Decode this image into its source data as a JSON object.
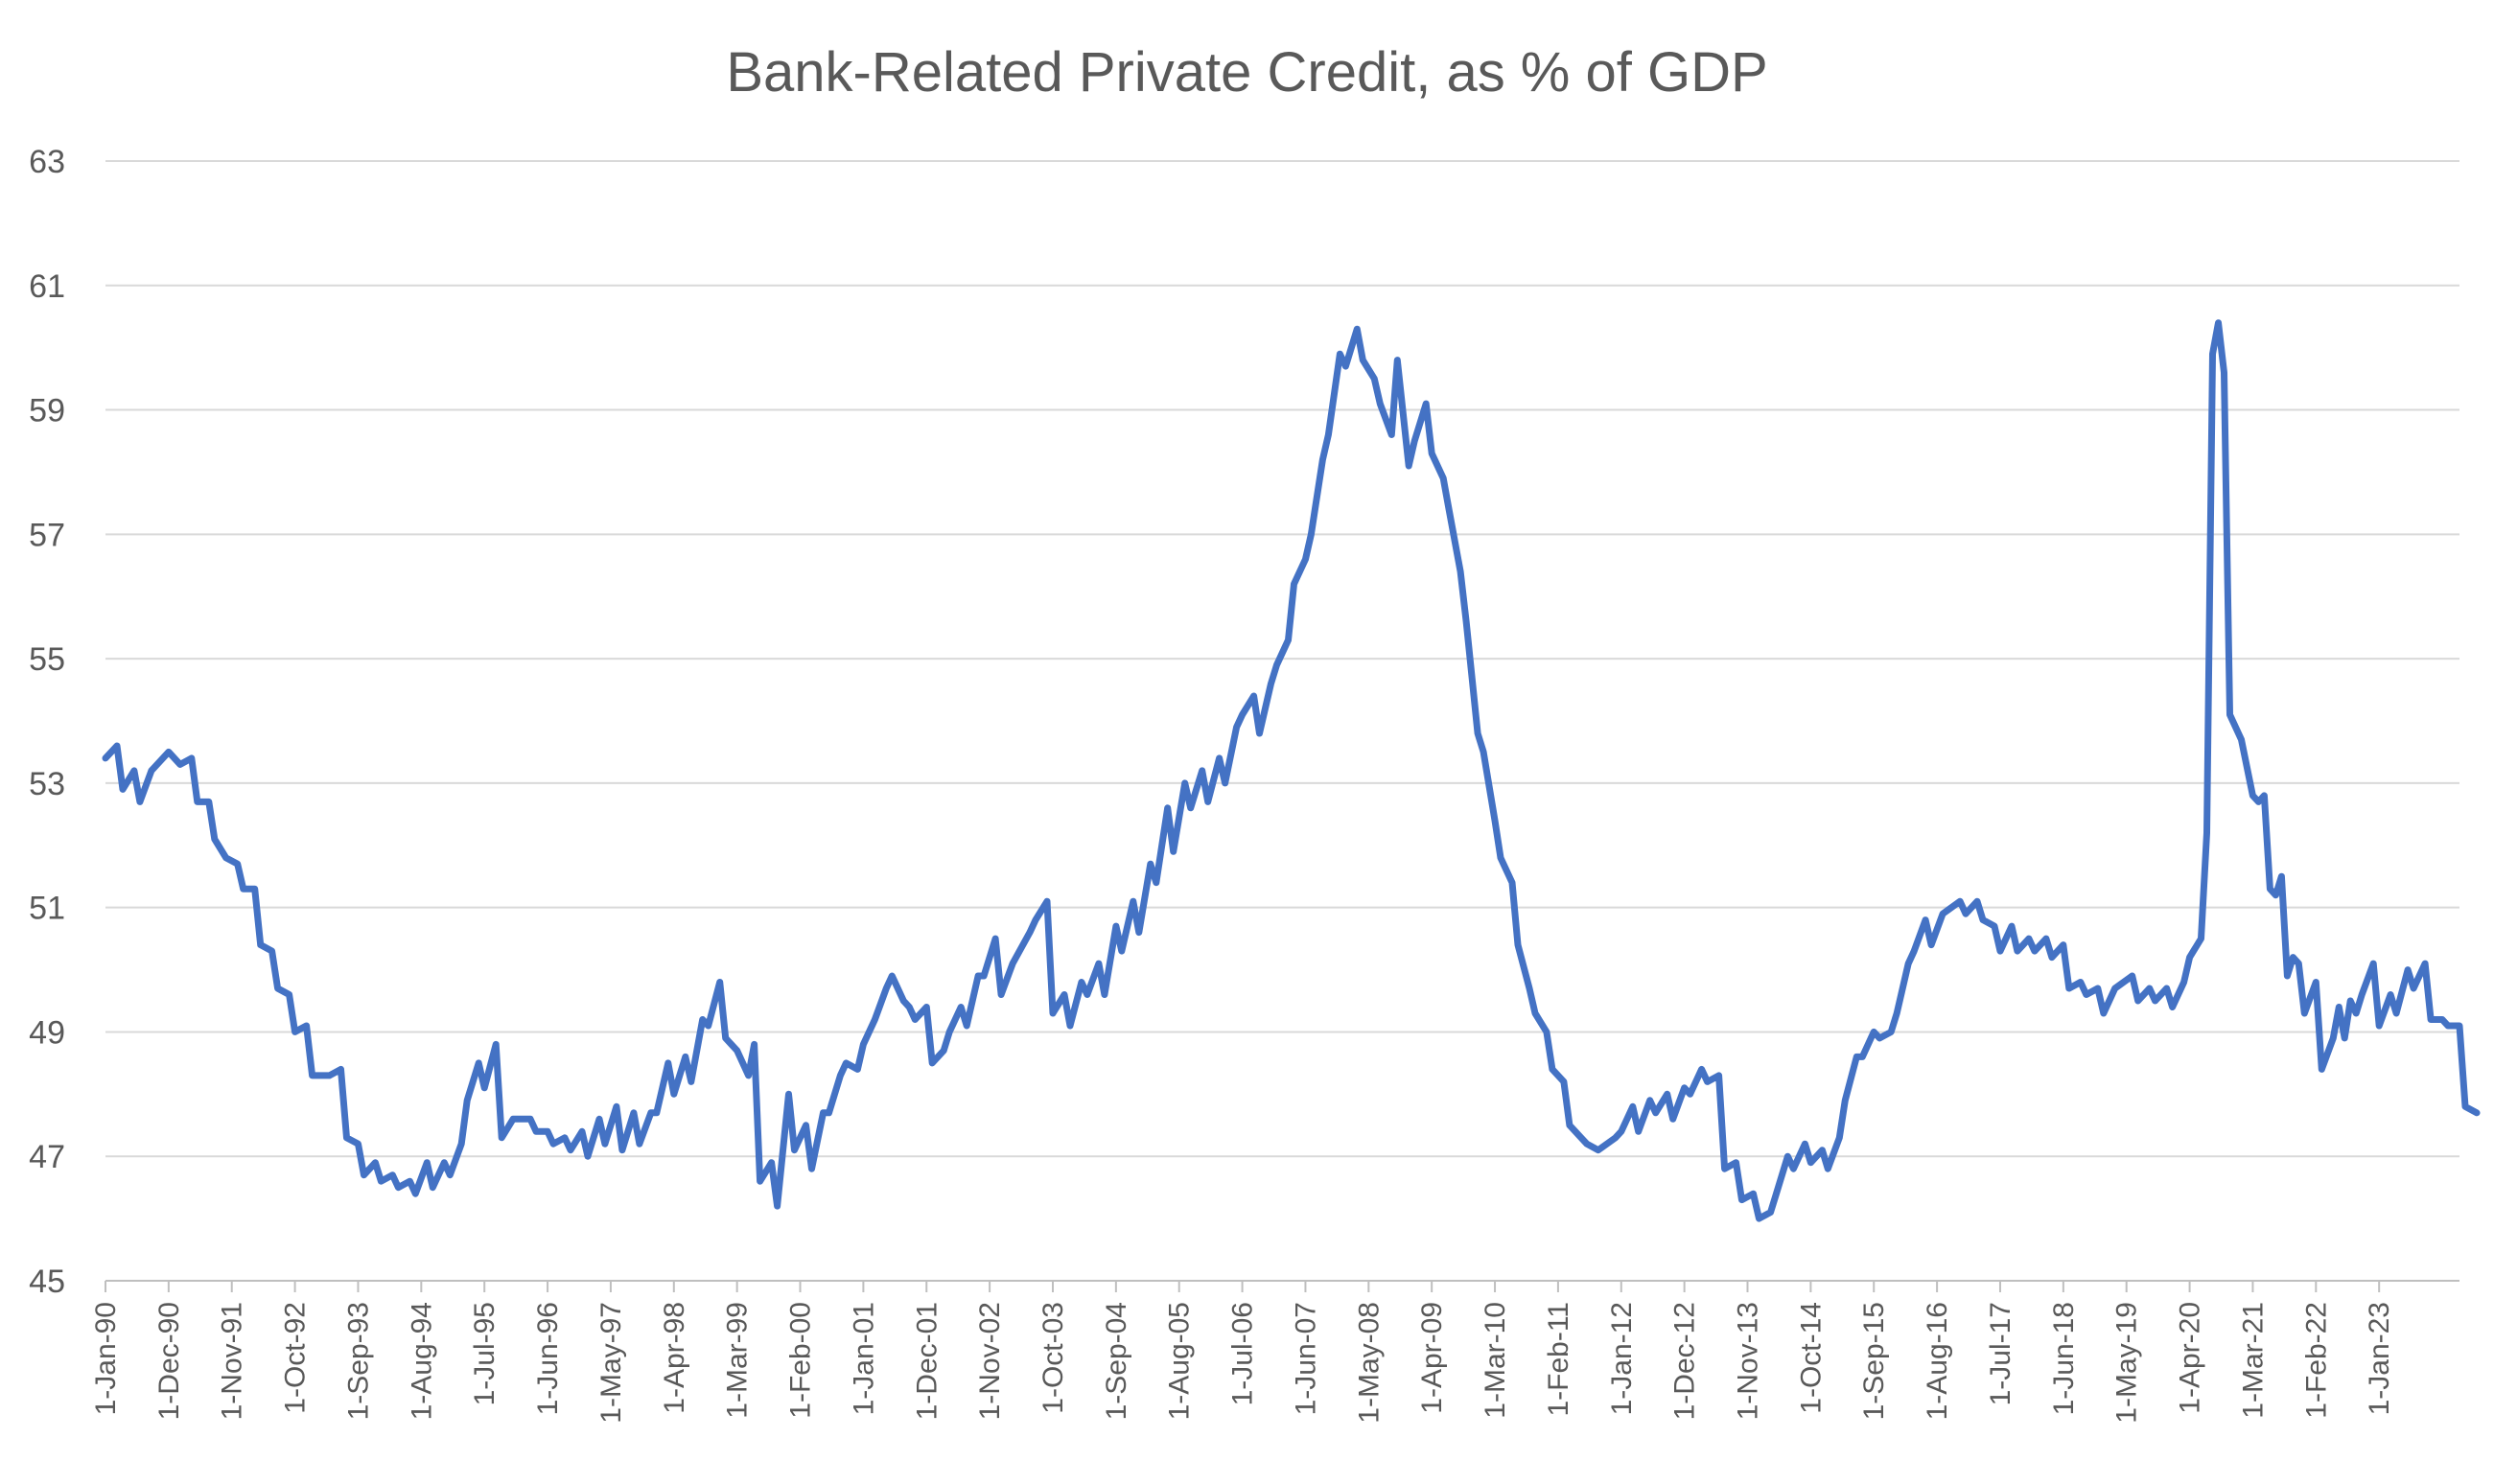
{
  "chart_data": {
    "type": "line",
    "title": "Bank-Related Private Credit, as % of GDP",
    "xlabel": "",
    "ylabel": "",
    "ylim": [
      45,
      63
    ],
    "y_ticks": [
      45,
      47,
      49,
      51,
      53,
      55,
      57,
      59,
      61,
      63
    ],
    "grid": true,
    "legend": "none",
    "x_range": [
      "1990-01",
      "2023-09"
    ],
    "x_tick_labels": [
      "1-Jan-90",
      "1-Dec-90",
      "1-Nov-91",
      "1-Oct-92",
      "1-Sep-93",
      "1-Aug-94",
      "1-Jul-95",
      "1-Jun-96",
      "1-May-97",
      "1-Apr-98",
      "1-Mar-99",
      "1-Feb-00",
      "1-Jan-01",
      "1-Dec-01",
      "1-Nov-02",
      "1-Oct-03",
      "1-Sep-04",
      "1-Aug-05",
      "1-Jul-06",
      "1-Jun-07",
      "1-May-08",
      "1-Apr-09",
      "1-Mar-10",
      "1-Feb-11",
      "1-Jan-12",
      "1-Dec-12",
      "1-Nov-13",
      "1-Oct-14",
      "1-Sep-15",
      "1-Aug-16",
      "1-Jul-17",
      "1-Jun-18",
      "1-May-19",
      "1-Apr-20",
      "1-Mar-21",
      "1-Feb-22",
      "1-Jan-23"
    ],
    "colors": {
      "line": "#4472C4",
      "grid": "#d9d9d9",
      "text": "#595959"
    },
    "series": [
      {
        "points": [
          [
            "1990-01",
            53.4
          ],
          [
            "1990-03",
            53.6
          ],
          [
            "1990-04",
            52.9
          ],
          [
            "1990-06",
            53.2
          ],
          [
            "1990-07",
            52.7
          ],
          [
            "1990-09",
            53.2
          ],
          [
            "1990-12",
            53.5
          ],
          [
            "1991-02",
            53.3
          ],
          [
            "1991-04",
            53.4
          ],
          [
            "1991-05",
            52.7
          ],
          [
            "1991-07",
            52.7
          ],
          [
            "1991-08",
            52.1
          ],
          [
            "1991-10",
            51.8
          ],
          [
            "1991-12",
            51.7
          ],
          [
            "1992-01",
            51.3
          ],
          [
            "1992-03",
            51.3
          ],
          [
            "1992-04",
            50.4
          ],
          [
            "1992-06",
            50.3
          ],
          [
            "1992-07",
            49.7
          ],
          [
            "1992-09",
            49.6
          ],
          [
            "1992-10",
            49.0
          ],
          [
            "1992-12",
            49.1
          ],
          [
            "1993-01",
            48.3
          ],
          [
            "1993-04",
            48.3
          ],
          [
            "1993-06",
            48.4
          ],
          [
            "1993-07",
            47.3
          ],
          [
            "1993-09",
            47.2
          ],
          [
            "1993-10",
            46.7
          ],
          [
            "1993-12",
            46.9
          ],
          [
            "1994-01",
            46.6
          ],
          [
            "1994-03",
            46.7
          ],
          [
            "1994-04",
            46.5
          ],
          [
            "1994-06",
            46.6
          ],
          [
            "1994-07",
            46.4
          ],
          [
            "1994-09",
            46.9
          ],
          [
            "1994-10",
            46.5
          ],
          [
            "1994-12",
            46.9
          ],
          [
            "1995-01",
            46.7
          ],
          [
            "1995-03",
            47.2
          ],
          [
            "1995-04",
            47.9
          ],
          [
            "1995-06",
            48.5
          ],
          [
            "1995-07",
            48.1
          ],
          [
            "1995-09",
            48.8
          ],
          [
            "1995-10",
            47.3
          ],
          [
            "1995-12",
            47.6
          ],
          [
            "1996-03",
            47.6
          ],
          [
            "1996-04",
            47.4
          ],
          [
            "1996-06",
            47.4
          ],
          [
            "1996-07",
            47.2
          ],
          [
            "1996-09",
            47.3
          ],
          [
            "1996-10",
            47.1
          ],
          [
            "1996-12",
            47.4
          ],
          [
            "1997-01",
            47.0
          ],
          [
            "1997-03",
            47.6
          ],
          [
            "1997-04",
            47.2
          ],
          [
            "1997-06",
            47.8
          ],
          [
            "1997-07",
            47.1
          ],
          [
            "1997-09",
            47.7
          ],
          [
            "1997-10",
            47.2
          ],
          [
            "1997-12",
            47.7
          ],
          [
            "1998-01",
            47.7
          ],
          [
            "1998-03",
            48.5
          ],
          [
            "1998-04",
            48.0
          ],
          [
            "1998-06",
            48.6
          ],
          [
            "1998-07",
            48.2
          ],
          [
            "1998-09",
            49.2
          ],
          [
            "1998-10",
            49.1
          ],
          [
            "1998-12",
            49.8
          ],
          [
            "1999-01",
            48.9
          ],
          [
            "1999-03",
            48.7
          ],
          [
            "1999-05",
            48.3
          ],
          [
            "1999-06",
            48.8
          ],
          [
            "1999-07",
            46.6
          ],
          [
            "1999-09",
            46.9
          ],
          [
            "1999-10",
            46.2
          ],
          [
            "1999-12",
            48.0
          ],
          [
            "2000-01",
            47.1
          ],
          [
            "2000-03",
            47.5
          ],
          [
            "2000-04",
            46.8
          ],
          [
            "2000-06",
            47.7
          ],
          [
            "2000-07",
            47.7
          ],
          [
            "2000-09",
            48.3
          ],
          [
            "2000-10",
            48.5
          ],
          [
            "2000-12",
            48.4
          ],
          [
            "2001-01",
            48.8
          ],
          [
            "2001-03",
            49.2
          ],
          [
            "2001-05",
            49.7
          ],
          [
            "2001-06",
            49.9
          ],
          [
            "2001-08",
            49.5
          ],
          [
            "2001-09",
            49.4
          ],
          [
            "2001-10",
            49.2
          ],
          [
            "2001-12",
            49.4
          ],
          [
            "2002-01",
            48.5
          ],
          [
            "2002-03",
            48.7
          ],
          [
            "2002-04",
            49.0
          ],
          [
            "2002-06",
            49.4
          ],
          [
            "2002-07",
            49.1
          ],
          [
            "2002-09",
            49.9
          ],
          [
            "2002-10",
            49.9
          ],
          [
            "2002-12",
            50.5
          ],
          [
            "2003-01",
            49.6
          ],
          [
            "2003-03",
            50.1
          ],
          [
            "2003-06",
            50.6
          ],
          [
            "2003-07",
            50.8
          ],
          [
            "2003-09",
            51.1
          ],
          [
            "2003-10",
            49.3
          ],
          [
            "2003-12",
            49.6
          ],
          [
            "2004-01",
            49.1
          ],
          [
            "2004-03",
            49.8
          ],
          [
            "2004-04",
            49.6
          ],
          [
            "2004-06",
            50.1
          ],
          [
            "2004-07",
            49.6
          ],
          [
            "2004-09",
            50.7
          ],
          [
            "2004-10",
            50.3
          ],
          [
            "2004-12",
            51.1
          ],
          [
            "2005-01",
            50.6
          ],
          [
            "2005-03",
            51.7
          ],
          [
            "2005-04",
            51.4
          ],
          [
            "2005-06",
            52.6
          ],
          [
            "2005-07",
            51.9
          ],
          [
            "2005-09",
            53.0
          ],
          [
            "2005-10",
            52.6
          ],
          [
            "2005-12",
            53.2
          ],
          [
            "2006-01",
            52.7
          ],
          [
            "2006-03",
            53.4
          ],
          [
            "2006-04",
            53.0
          ],
          [
            "2006-06",
            53.9
          ],
          [
            "2006-07",
            54.1
          ],
          [
            "2006-09",
            54.4
          ],
          [
            "2006-10",
            53.8
          ],
          [
            "2006-12",
            54.6
          ],
          [
            "2007-01",
            54.9
          ],
          [
            "2007-03",
            55.3
          ],
          [
            "2007-04",
            56.2
          ],
          [
            "2007-06",
            56.6
          ],
          [
            "2007-07",
            57.0
          ],
          [
            "2007-09",
            58.2
          ],
          [
            "2007-10",
            58.6
          ],
          [
            "2007-12",
            59.9
          ],
          [
            "2008-01",
            59.7
          ],
          [
            "2008-03",
            60.3
          ],
          [
            "2008-04",
            59.8
          ],
          [
            "2008-06",
            59.5
          ],
          [
            "2008-07",
            59.1
          ],
          [
            "2008-09",
            58.6
          ],
          [
            "2008-10",
            59.8
          ],
          [
            "2008-12",
            58.1
          ],
          [
            "2009-01",
            58.5
          ],
          [
            "2009-03",
            59.1
          ],
          [
            "2009-04",
            58.3
          ],
          [
            "2009-06",
            57.9
          ],
          [
            "2009-07",
            57.4
          ],
          [
            "2009-09",
            56.4
          ],
          [
            "2009-10",
            55.6
          ],
          [
            "2009-12",
            53.8
          ],
          [
            "2010-01",
            53.5
          ],
          [
            "2010-03",
            52.4
          ],
          [
            "2010-04",
            51.8
          ],
          [
            "2010-06",
            51.4
          ],
          [
            "2010-07",
            50.4
          ],
          [
            "2010-09",
            49.7
          ],
          [
            "2010-10",
            49.3
          ],
          [
            "2010-12",
            49.0
          ],
          [
            "2011-01",
            48.4
          ],
          [
            "2011-03",
            48.2
          ],
          [
            "2011-04",
            47.5
          ],
          [
            "2011-06",
            47.3
          ],
          [
            "2011-07",
            47.2
          ],
          [
            "2011-09",
            47.1
          ],
          [
            "2011-12",
            47.3
          ],
          [
            "2012-01",
            47.4
          ],
          [
            "2012-03",
            47.8
          ],
          [
            "2012-04",
            47.4
          ],
          [
            "2012-06",
            47.9
          ],
          [
            "2012-07",
            47.7
          ],
          [
            "2012-09",
            48.0
          ],
          [
            "2012-10",
            47.6
          ],
          [
            "2012-12",
            48.1
          ],
          [
            "2013-01",
            48.0
          ],
          [
            "2013-03",
            48.4
          ],
          [
            "2013-04",
            48.2
          ],
          [
            "2013-06",
            48.3
          ],
          [
            "2013-07",
            46.8
          ],
          [
            "2013-09",
            46.9
          ],
          [
            "2013-10",
            46.3
          ],
          [
            "2013-12",
            46.4
          ],
          [
            "2014-01",
            46.0
          ],
          [
            "2014-03",
            46.1
          ],
          [
            "2014-04",
            46.4
          ],
          [
            "2014-06",
            47.0
          ],
          [
            "2014-07",
            46.8
          ],
          [
            "2014-09",
            47.2
          ],
          [
            "2014-10",
            46.9
          ],
          [
            "2014-12",
            47.1
          ],
          [
            "2015-01",
            46.8
          ],
          [
            "2015-03",
            47.3
          ],
          [
            "2015-04",
            47.9
          ],
          [
            "2015-06",
            48.6
          ],
          [
            "2015-07",
            48.6
          ],
          [
            "2015-09",
            49.0
          ],
          [
            "2015-10",
            48.9
          ],
          [
            "2015-12",
            49.0
          ],
          [
            "2016-01",
            49.3
          ],
          [
            "2016-03",
            50.1
          ],
          [
            "2016-04",
            50.3
          ],
          [
            "2016-06",
            50.8
          ],
          [
            "2016-07",
            50.4
          ],
          [
            "2016-09",
            50.9
          ],
          [
            "2016-12",
            51.1
          ],
          [
            "2017-01",
            50.9
          ],
          [
            "2017-03",
            51.1
          ],
          [
            "2017-04",
            50.8
          ],
          [
            "2017-06",
            50.7
          ],
          [
            "2017-07",
            50.3
          ],
          [
            "2017-09",
            50.7
          ],
          [
            "2017-10",
            50.3
          ],
          [
            "2017-12",
            50.5
          ],
          [
            "2018-01",
            50.3
          ],
          [
            "2018-03",
            50.5
          ],
          [
            "2018-04",
            50.2
          ],
          [
            "2018-06",
            50.4
          ],
          [
            "2018-07",
            49.7
          ],
          [
            "2018-09",
            49.8
          ],
          [
            "2018-10",
            49.6
          ],
          [
            "2018-12",
            49.7
          ],
          [
            "2019-01",
            49.3
          ],
          [
            "2019-03",
            49.7
          ],
          [
            "2019-06",
            49.9
          ],
          [
            "2019-07",
            49.5
          ],
          [
            "2019-09",
            49.7
          ],
          [
            "2019-10",
            49.5
          ],
          [
            "2019-12",
            49.7
          ],
          [
            "2020-01",
            49.4
          ],
          [
            "2020-03",
            49.8
          ],
          [
            "2020-04",
            50.2
          ],
          [
            "2020-06",
            50.5
          ],
          [
            "2020-07",
            52.2
          ],
          [
            "2020-08",
            59.9
          ],
          [
            "2020-09",
            60.4
          ],
          [
            "2020-10",
            59.6
          ],
          [
            "2020-11",
            54.1
          ],
          [
            "2021-01",
            53.7
          ],
          [
            "2021-03",
            52.8
          ],
          [
            "2021-04",
            52.7
          ],
          [
            "2021-05",
            52.8
          ],
          [
            "2021-06",
            51.3
          ],
          [
            "2021-07",
            51.2
          ],
          [
            "2021-08",
            51.5
          ],
          [
            "2021-09",
            49.9
          ],
          [
            "2021-10",
            50.2
          ],
          [
            "2021-11",
            50.1
          ],
          [
            "2021-12",
            49.3
          ],
          [
            "2022-02",
            49.8
          ],
          [
            "2022-03",
            48.4
          ],
          [
            "2022-05",
            48.9
          ],
          [
            "2022-06",
            49.4
          ],
          [
            "2022-07",
            48.9
          ],
          [
            "2022-08",
            49.5
          ],
          [
            "2022-09",
            49.3
          ],
          [
            "2022-10",
            49.6
          ],
          [
            "2022-12",
            50.1
          ],
          [
            "2023-01",
            49.1
          ],
          [
            "2023-03",
            49.6
          ],
          [
            "2023-04",
            49.3
          ],
          [
            "2023-06",
            50.0
          ],
          [
            "2023-07",
            49.7
          ],
          [
            "2023-09",
            50.1
          ],
          [
            "2023-10",
            49.2
          ],
          [
            "2023-12",
            49.2
          ],
          [
            "2024-01",
            49.1
          ],
          [
            "2024-03",
            49.1
          ],
          [
            "2024-04",
            47.8
          ],
          [
            "2024-06",
            47.7
          ]
        ]
      }
    ]
  }
}
